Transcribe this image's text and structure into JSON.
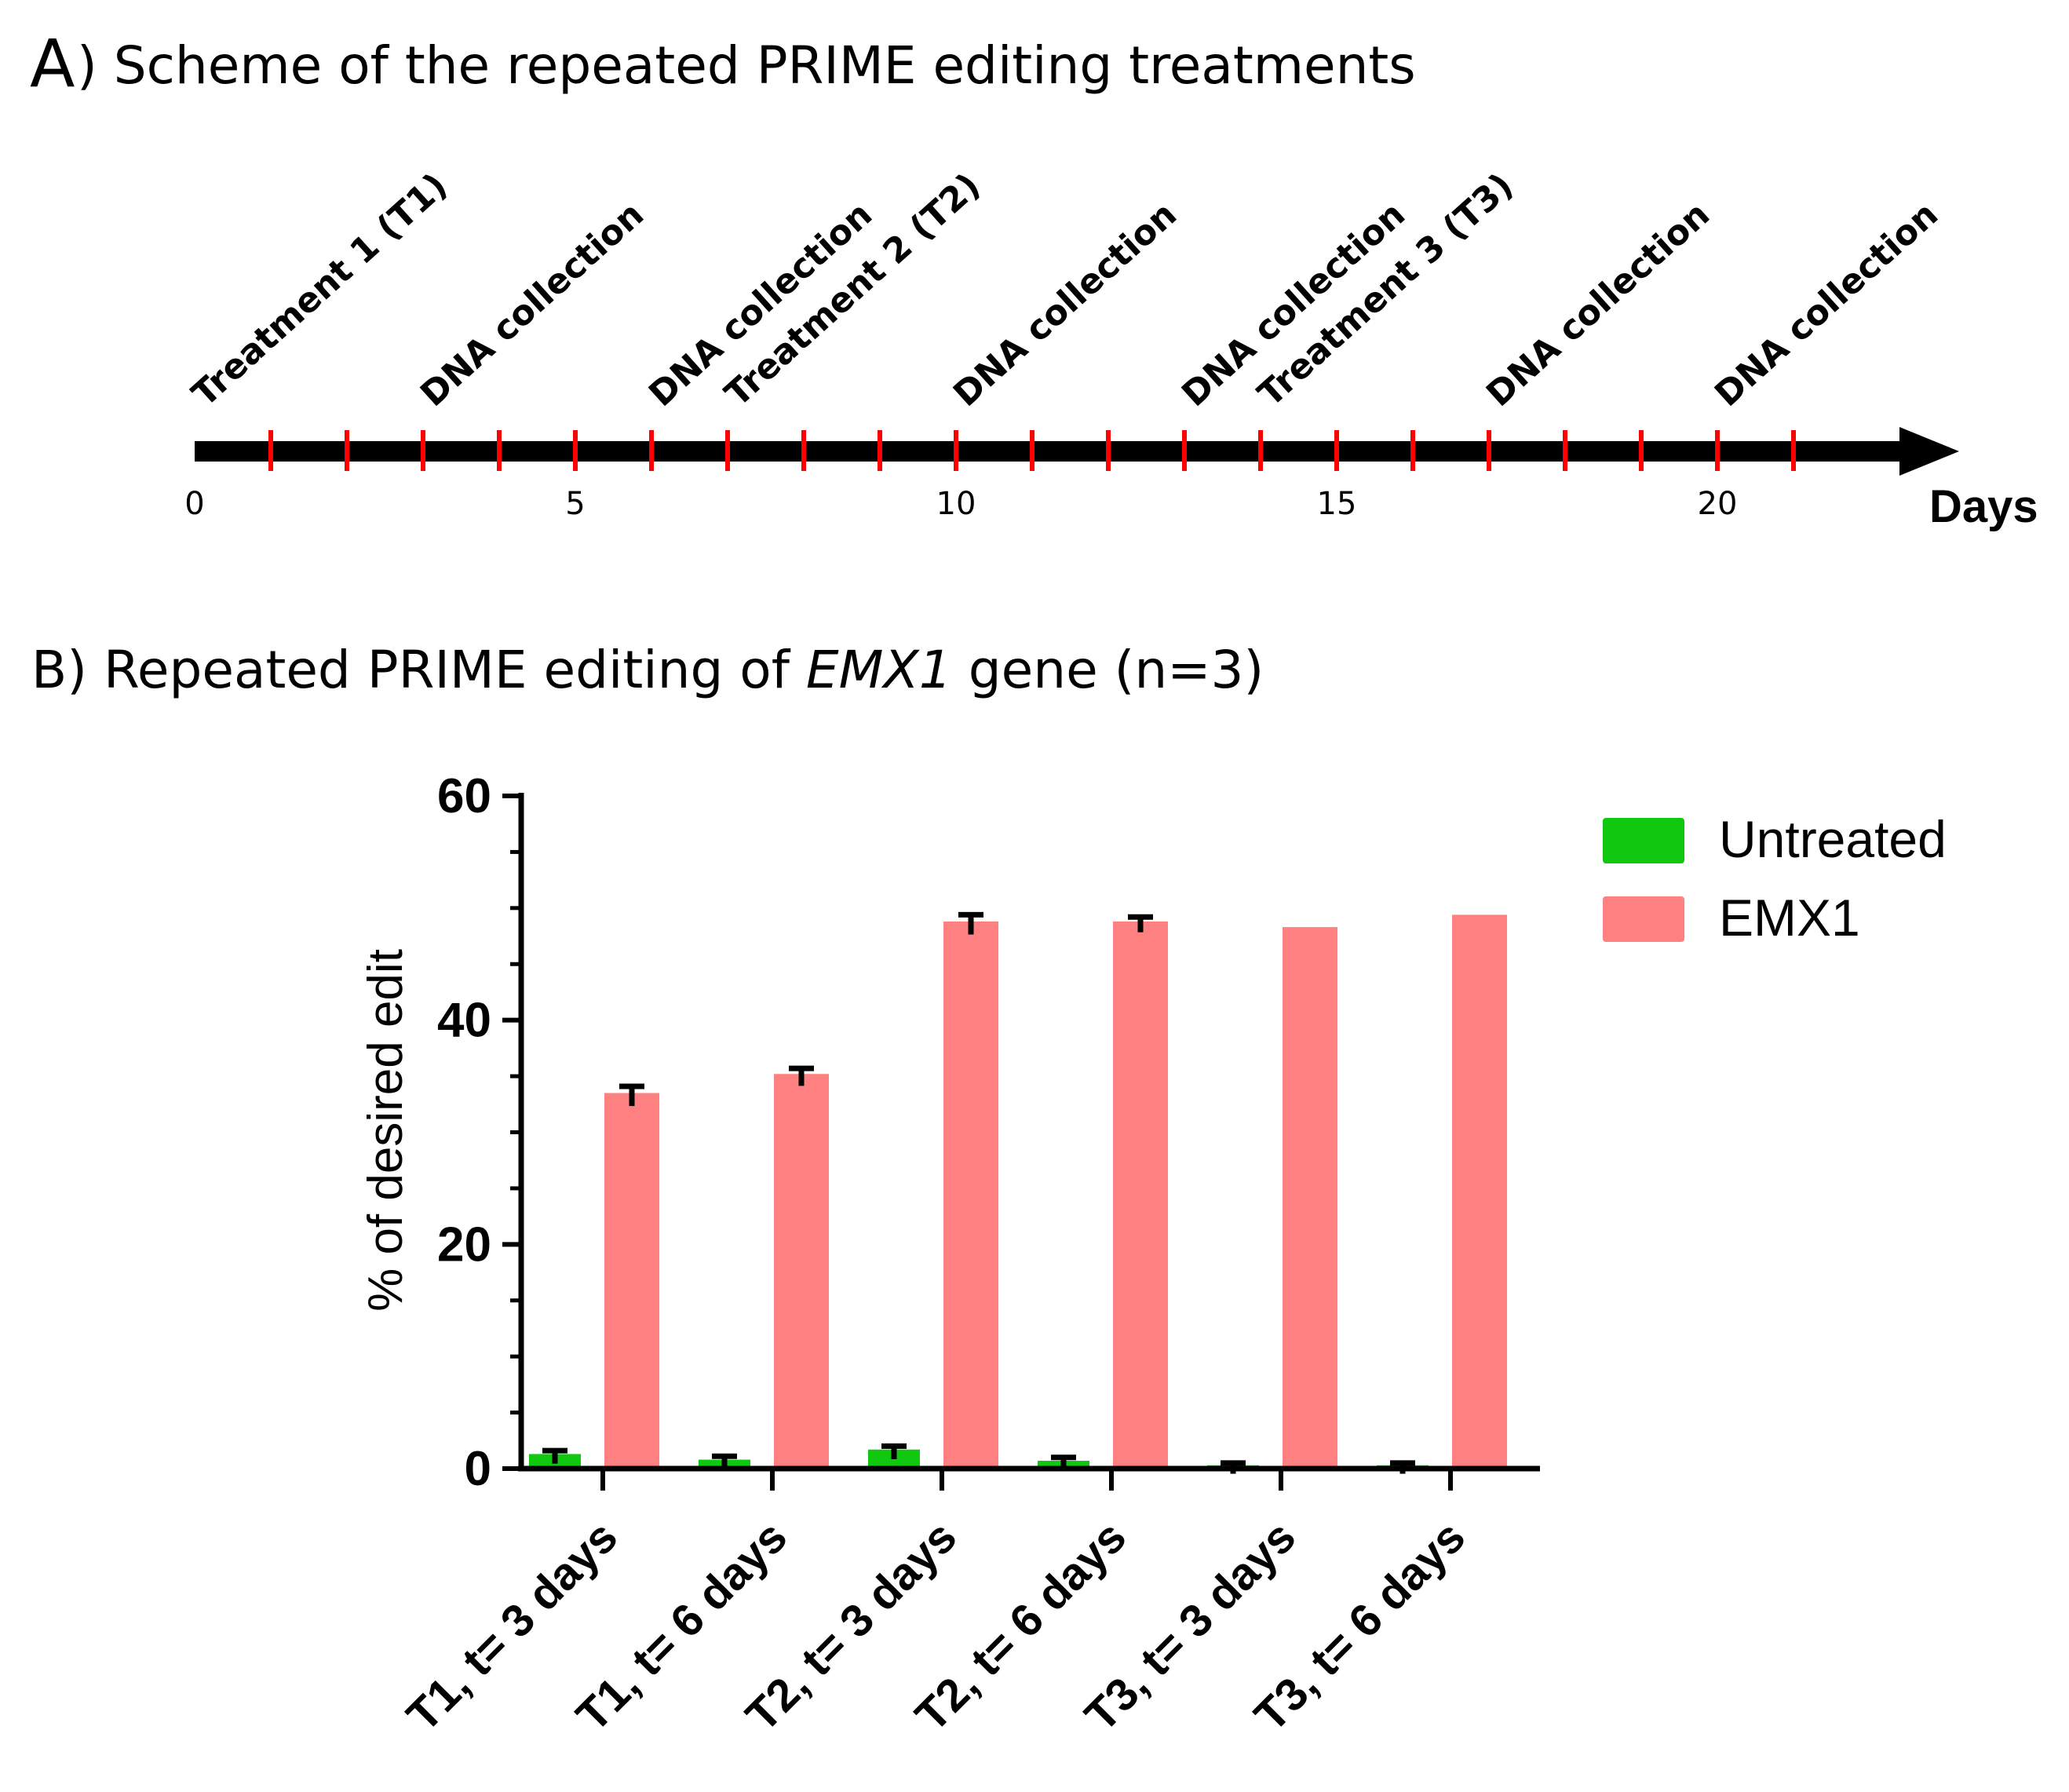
{
  "panel_a": {
    "letter": "A",
    "title": ") Scheme of the repeated PRIME editing treatments",
    "axis_unit": "Days",
    "tick_labels": [
      "0",
      "5",
      "10",
      "15",
      "20"
    ],
    "tick_values": [
      0,
      5,
      10,
      15,
      20
    ],
    "minor_ticks": [
      1,
      2,
      3,
      4,
      5,
      6,
      7,
      8,
      9,
      10,
      11,
      12,
      13,
      14,
      15,
      16,
      17,
      18,
      19,
      20,
      21
    ],
    "events": [
      {
        "day": 0,
        "label": "Treatment 1 (T1)"
      },
      {
        "day": 3,
        "label": "DNA collection"
      },
      {
        "day": 6,
        "label": "DNA collection"
      },
      {
        "day": 7,
        "label": "Treatment 2 (T2)"
      },
      {
        "day": 10,
        "label": "DNA collection"
      },
      {
        "day": 13,
        "label": "DNA collection"
      },
      {
        "day": 14,
        "label": "Treatment 3 (T3)"
      },
      {
        "day": 17,
        "label": "DNA collection"
      },
      {
        "day": 20,
        "label": "DNA collection"
      }
    ],
    "colors": {
      "axis": "#000000",
      "ticks": "#ff0000"
    }
  },
  "panel_b": {
    "title_prefix": "B) Repeated PRIME editing  of ",
    "title_gene": "EMX1",
    "title_suffix": " gene (n=3)"
  },
  "chart_data": {
    "type": "bar",
    "title": "",
    "xlabel": "",
    "ylabel": "% of desired edit",
    "ylim": [
      0,
      60
    ],
    "yticks": [
      0,
      20,
      40,
      60
    ],
    "categories": [
      "T1, t= 3 days",
      "T1, t= 6 days",
      "T2, t= 3 days",
      "T2, t= 6 days",
      "T3, t= 3 days",
      "T3, t= 6 days"
    ],
    "series": [
      {
        "name": "Untreated",
        "color": "#11c811",
        "values": [
          1.3,
          0.8,
          1.7,
          0.7,
          0.3,
          0.3
        ],
        "errors": [
          0.3,
          0.3,
          0.3,
          0.3,
          0.2,
          0.2
        ]
      },
      {
        "name": "EMX1",
        "color": "#ff8080",
        "values": [
          33.5,
          35.2,
          48.8,
          48.8,
          48.3,
          49.4
        ],
        "errors": [
          0.6,
          0.5,
          0.6,
          0.4,
          0,
          0
        ]
      }
    ],
    "legend_position": "top-right",
    "grid": false
  }
}
